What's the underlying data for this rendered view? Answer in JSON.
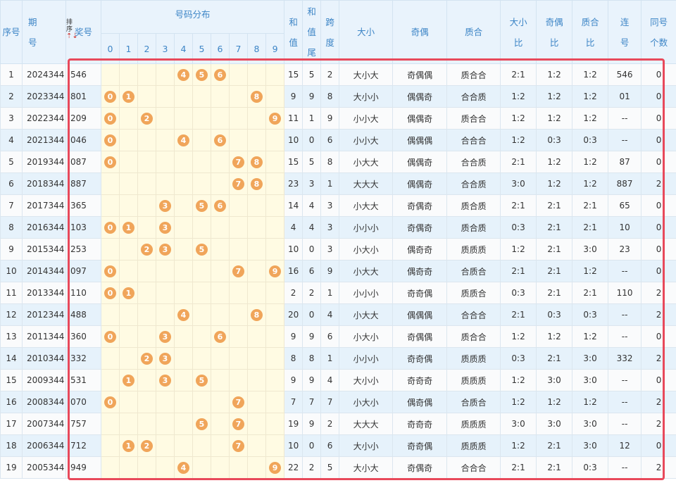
{
  "header": {
    "seq": "序号",
    "issue": [
      "期",
      "号"
    ],
    "sort": "排序",
    "draw": "奖号",
    "distribution": "号码分布",
    "digits": [
      "0",
      "1",
      "2",
      "3",
      "4",
      "5",
      "6",
      "7",
      "8",
      "9"
    ],
    "columns": [
      [
        "和",
        "值"
      ],
      [
        "和",
        "值",
        "尾"
      ],
      [
        "跨",
        "度"
      ],
      [
        "大小"
      ],
      [
        "奇偶"
      ],
      [
        "质合"
      ],
      [
        "大小",
        "比"
      ],
      [
        "奇偶",
        "比"
      ],
      [
        "质合",
        "比"
      ],
      [
        "连",
        "号"
      ],
      [
        "同号",
        "个数"
      ]
    ]
  },
  "rows": [
    [
      "1",
      "2024344",
      "546",
      [
        "4",
        "5",
        "6"
      ],
      "15",
      "5",
      "2",
      "大小大",
      "奇偶偶",
      "质合合",
      "2:1",
      "1:2",
      "1:2",
      "546",
      "0"
    ],
    [
      "2",
      "2023344",
      "801",
      [
        "0",
        "1",
        "8"
      ],
      "9",
      "9",
      "8",
      "大小小",
      "偶偶奇",
      "合合质",
      "1:2",
      "1:2",
      "1:2",
      "01",
      "0"
    ],
    [
      "3",
      "2022344",
      "209",
      [
        "0",
        "2",
        "9"
      ],
      "11",
      "1",
      "9",
      "小小大",
      "偶偶奇",
      "质合合",
      "1:2",
      "1:2",
      "1:2",
      "--",
      "0"
    ],
    [
      "4",
      "2021344",
      "046",
      [
        "0",
        "4",
        "6"
      ],
      "10",
      "0",
      "6",
      "小小大",
      "偶偶偶",
      "合合合",
      "1:2",
      "0:3",
      "0:3",
      "--",
      "0"
    ],
    [
      "5",
      "2019344",
      "087",
      [
        "0",
        "7",
        "8"
      ],
      "15",
      "5",
      "8",
      "小大大",
      "偶偶奇",
      "合合质",
      "2:1",
      "1:2",
      "1:2",
      "87",
      "0"
    ],
    [
      "6",
      "2018344",
      "887",
      [
        "7",
        "8"
      ],
      "23",
      "3",
      "1",
      "大大大",
      "偶偶奇",
      "合合质",
      "3:0",
      "1:2",
      "1:2",
      "887",
      "2"
    ],
    [
      "7",
      "2017344",
      "365",
      [
        "3",
        "5",
        "6"
      ],
      "14",
      "4",
      "3",
      "小大大",
      "奇偶奇",
      "质合质",
      "2:1",
      "2:1",
      "2:1",
      "65",
      "0"
    ],
    [
      "8",
      "2016344",
      "103",
      [
        "0",
        "1",
        "3"
      ],
      "4",
      "4",
      "3",
      "小小小",
      "奇偶奇",
      "质合质",
      "0:3",
      "2:1",
      "2:1",
      "10",
      "0"
    ],
    [
      "9",
      "2015344",
      "253",
      [
        "2",
        "3",
        "5"
      ],
      "10",
      "0",
      "3",
      "小大小",
      "偶奇奇",
      "质质质",
      "1:2",
      "2:1",
      "3:0",
      "23",
      "0"
    ],
    [
      "10",
      "2014344",
      "097",
      [
        "0",
        "7",
        "9"
      ],
      "16",
      "6",
      "9",
      "小大大",
      "偶奇奇",
      "合质合",
      "2:1",
      "2:1",
      "1:2",
      "--",
      "0"
    ],
    [
      "11",
      "2013344",
      "110",
      [
        "0",
        "1"
      ],
      "2",
      "2",
      "1",
      "小小小",
      "奇奇偶",
      "质质合",
      "0:3",
      "2:1",
      "2:1",
      "110",
      "2"
    ],
    [
      "12",
      "2012344",
      "488",
      [
        "4",
        "8"
      ],
      "20",
      "0",
      "4",
      "小大大",
      "偶偶偶",
      "合合合",
      "2:1",
      "0:3",
      "0:3",
      "--",
      "2"
    ],
    [
      "13",
      "2011344",
      "360",
      [
        "0",
        "3",
        "6"
      ],
      "9",
      "9",
      "6",
      "小大小",
      "奇偶偶",
      "质合合",
      "1:2",
      "1:2",
      "1:2",
      "--",
      "0"
    ],
    [
      "14",
      "2010344",
      "332",
      [
        "2",
        "3"
      ],
      "8",
      "8",
      "1",
      "小小小",
      "奇奇偶",
      "质质质",
      "0:3",
      "2:1",
      "3:0",
      "332",
      "2"
    ],
    [
      "15",
      "2009344",
      "531",
      [
        "1",
        "3",
        "5"
      ],
      "9",
      "9",
      "4",
      "大小小",
      "奇奇奇",
      "质质质",
      "1:2",
      "3:0",
      "3:0",
      "--",
      "0"
    ],
    [
      "16",
      "2008344",
      "070",
      [
        "0",
        "7"
      ],
      "7",
      "7",
      "7",
      "小大小",
      "偶奇偶",
      "合质合",
      "1:2",
      "1:2",
      "1:2",
      "--",
      "2"
    ],
    [
      "17",
      "2007344",
      "757",
      [
        "5",
        "7"
      ],
      "19",
      "9",
      "2",
      "大大大",
      "奇奇奇",
      "质质质",
      "3:0",
      "3:0",
      "3:0",
      "--",
      "2"
    ],
    [
      "18",
      "2006344",
      "712",
      [
        "1",
        "2",
        "7"
      ],
      "10",
      "0",
      "6",
      "大小小",
      "奇奇偶",
      "质质质",
      "1:2",
      "2:1",
      "3:0",
      "12",
      "0"
    ],
    [
      "19",
      "2005344",
      "949",
      [
        "4",
        "9"
      ],
      "22",
      "2",
      "5",
      "大小大",
      "奇偶奇",
      "合合合",
      "2:1",
      "2:1",
      "0:3",
      "--",
      "2"
    ]
  ]
}
